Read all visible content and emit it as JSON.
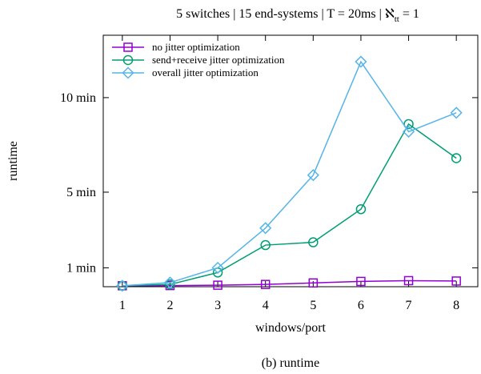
{
  "chart_data": {
    "type": "line",
    "title": "5 switches | 15 end-systems | T = 20ms | ℵ",
    "title_subscript": "tt",
    "title_suffix": " = 1",
    "xlabel": "windows/port",
    "ylabel": "runtime",
    "caption": "(b)  runtime",
    "x": [
      1,
      2,
      3,
      4,
      5,
      6,
      7,
      8
    ],
    "xlim": [
      0.6,
      8.45
    ],
    "ylim_minutes": [
      0.0,
      13.3
    ],
    "y_ticks": [
      {
        "value": 1,
        "label": "1 min"
      },
      {
        "value": 5,
        "label": "5 min"
      },
      {
        "value": 10,
        "label": "10 min"
      }
    ],
    "grid": false,
    "legend_position": "top-left",
    "series": [
      {
        "name": "no jitter optimization",
        "color": "#9400d3",
        "marker": "square",
        "values": [
          0.05,
          0.06,
          0.08,
          0.12,
          0.2,
          0.28,
          0.32,
          0.3
        ]
      },
      {
        "name": "send+receive jitter optimization",
        "color": "#009e73",
        "marker": "circle",
        "values": [
          0.05,
          0.12,
          0.75,
          2.2,
          2.35,
          4.1,
          8.6,
          6.8
        ]
      },
      {
        "name": "overall jitter optimization",
        "color": "#56b4e9",
        "marker": "diamond",
        "values": [
          0.05,
          0.22,
          1.0,
          3.1,
          5.9,
          11.9,
          8.2,
          9.2
        ]
      }
    ]
  }
}
